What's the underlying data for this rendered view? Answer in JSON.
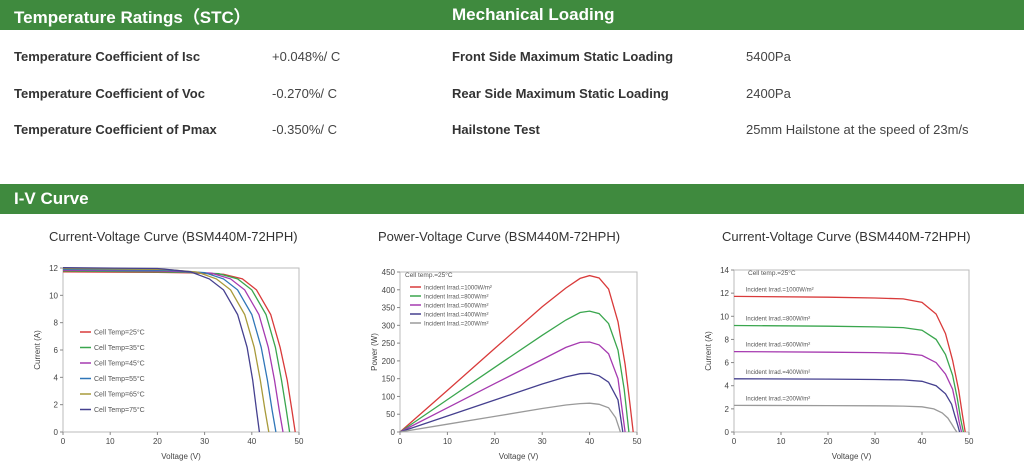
{
  "temp": {
    "title": "Temperature Ratings（STC）",
    "rows": [
      {
        "label": "Temperature Coefficient of  Isc",
        "value": "+0.048%/ C"
      },
      {
        "label": "Temperature Coefficient of  Voc",
        "value": "-0.270%/ C"
      },
      {
        "label": "Temperature Coefficient of  Pmax",
        "value": "-0.350%/ C"
      }
    ]
  },
  "mech": {
    "title": "Mechanical Loading",
    "rows": [
      {
        "label": "Front Side Maximum Static Loading",
        "value": "5400Pa"
      },
      {
        "label": "Rear Side Maximum Static Loading",
        "value": "2400Pa"
      },
      {
        "label": "Hailstone Test",
        "value": "25mm Hailstone at the speed of 23m/s"
      }
    ]
  },
  "iv": {
    "title": "I-V Curve"
  },
  "chart_data": [
    {
      "type": "line",
      "title": "Current-Voltage Curve (BSM440M-72HPH)",
      "xlabel": "Voltage (V)",
      "ylabel": "Current (A)",
      "xlim": [
        0,
        50
      ],
      "ylim": [
        0,
        12
      ],
      "xticks": [
        0,
        10,
        20,
        30,
        40,
        50
      ],
      "yticks": [
        0,
        2,
        4,
        6,
        8,
        10,
        12
      ],
      "legend_position": "left",
      "series": [
        {
          "name": "Cell Temp=25°C",
          "color": "#d93a3a",
          "x": [
            0,
            20,
            27,
            34,
            38,
            41,
            44,
            46,
            47.5,
            48.5,
            49.2
          ],
          "y": [
            11.72,
            11.68,
            11.64,
            11.54,
            11.2,
            10.4,
            8.6,
            6.2,
            3.8,
            1.6,
            0
          ]
        },
        {
          "name": "Cell Temp=35°C",
          "color": "#3aa64e",
          "x": [
            0,
            20,
            26,
            33,
            37,
            40,
            43,
            45,
            46.3,
            47.3,
            48
          ],
          "y": [
            11.78,
            11.72,
            11.68,
            11.58,
            11.2,
            10.4,
            8.6,
            6.2,
            3.8,
            1.6,
            0
          ]
        },
        {
          "name": "Cell Temp=45°C",
          "color": "#a63ab0",
          "x": [
            0,
            20,
            25,
            31.5,
            35.5,
            38.5,
            41.5,
            43.5,
            44.8,
            45.8,
            46.6
          ],
          "y": [
            11.84,
            11.78,
            11.74,
            11.62,
            11.2,
            10.4,
            8.6,
            6.2,
            3.8,
            1.6,
            0
          ]
        },
        {
          "name": "Cell Temp=55°C",
          "color": "#2f76b8",
          "x": [
            0,
            20,
            24,
            30,
            34,
            37,
            40,
            42,
            43.3,
            44.3,
            45.1
          ],
          "y": [
            11.9,
            11.84,
            11.8,
            11.66,
            11.2,
            10.4,
            8.6,
            6.2,
            3.8,
            1.6,
            0
          ]
        },
        {
          "name": "Cell Temp=65°C",
          "color": "#a89a3a",
          "x": [
            0,
            20,
            23,
            28.5,
            32.5,
            35.5,
            38.5,
            40.5,
            41.8,
            42.8,
            43.6
          ],
          "y": [
            11.96,
            11.9,
            11.86,
            11.7,
            11.2,
            10.4,
            8.6,
            6.2,
            3.8,
            1.6,
            0
          ]
        },
        {
          "name": "Cell Temp=75°C",
          "color": "#45408f",
          "x": [
            0,
            20,
            22,
            27,
            31,
            34,
            37,
            39,
            40.2,
            41,
            41.6
          ],
          "y": [
            12.02,
            11.96,
            11.9,
            11.72,
            11.2,
            10.4,
            8.6,
            6.2,
            3.8,
            1.6,
            0
          ]
        }
      ]
    },
    {
      "type": "line",
      "title": "Power-Voltage Curve (BSM440M-72HPH)",
      "xlabel": "Voltage (V)",
      "ylabel": "Power (W)",
      "xlim": [
        0,
        50
      ],
      "ylim": [
        0,
        450
      ],
      "xticks": [
        0,
        10,
        20,
        30,
        40,
        50
      ],
      "yticks": [
        0,
        50,
        100,
        150,
        200,
        250,
        300,
        350,
        400,
        450
      ],
      "annotation": "Cell temp.=25°C",
      "legend_position": "top-left",
      "series": [
        {
          "name": "Incident Irrad.=1000W/m²",
          "color": "#d93a3a",
          "x": [
            0,
            10,
            20,
            30,
            35,
            38,
            40,
            42,
            44,
            46,
            47.5,
            48.5,
            49.2
          ],
          "y": [
            0,
            117,
            235,
            352,
            405,
            432,
            440,
            433,
            402,
            310,
            190,
            80,
            0
          ]
        },
        {
          "name": "Incident Irrad.=800W/m²",
          "color": "#3aa64e",
          "x": [
            0,
            10,
            20,
            30,
            35,
            38,
            40,
            42,
            44,
            46,
            47.3,
            48.3
          ],
          "y": [
            0,
            91,
            182,
            272,
            315,
            336,
            340,
            333,
            305,
            230,
            120,
            0
          ]
        },
        {
          "name": "Incident Irrad.=600W/m²",
          "color": "#a63ab0",
          "x": [
            0,
            10,
            20,
            30,
            35,
            38,
            40,
            42,
            44,
            46,
            47.5
          ],
          "y": [
            0,
            68,
            136,
            204,
            238,
            252,
            253,
            245,
            220,
            150,
            0
          ]
        },
        {
          "name": "Incident Irrad.=400W/m²",
          "color": "#45408f",
          "x": [
            0,
            10,
            20,
            30,
            35,
            38,
            40,
            42,
            44,
            46,
            47
          ],
          "y": [
            0,
            45,
            90,
            135,
            155,
            164,
            165,
            158,
            140,
            90,
            0
          ]
        },
        {
          "name": "Incident Irrad.=200W/m²",
          "color": "#9a9a9a",
          "x": [
            0,
            10,
            20,
            30,
            35,
            38,
            40,
            42,
            44,
            45.5,
            46.5
          ],
          "y": [
            0,
            22,
            44,
            66,
            76,
            80,
            81,
            78,
            68,
            40,
            0
          ]
        }
      ]
    },
    {
      "type": "line",
      "title": "Current-Voltage Curve (BSM440M-72HPH)",
      "xlabel": "Voltage (V)",
      "ylabel": "Current (A)",
      "xlim": [
        0,
        50
      ],
      "ylim": [
        0,
        14
      ],
      "xticks": [
        0,
        10,
        20,
        30,
        40,
        50
      ],
      "yticks": [
        0,
        2,
        4,
        6,
        8,
        10,
        12,
        14
      ],
      "annotation": "Cell temp.=25°C",
      "series": [
        {
          "name": "Incident Irrad.=1000W/m²",
          "color": "#d93a3a",
          "x": [
            0,
            20,
            30,
            36,
            40,
            43,
            45,
            46.5,
            47.8,
            48.6,
            49.2
          ],
          "y": [
            11.72,
            11.65,
            11.58,
            11.5,
            11.2,
            10.2,
            8.5,
            6.2,
            3.6,
            1.5,
            0
          ]
        },
        {
          "name": "Incident Irrad.=800W/m²",
          "color": "#3aa64e",
          "x": [
            0,
            20,
            30,
            36,
            40,
            43,
            45,
            46.5,
            47.5,
            48.2,
            48.8
          ],
          "y": [
            9.2,
            9.14,
            9.08,
            9.02,
            8.8,
            8.0,
            6.7,
            4.9,
            2.9,
            1.2,
            0
          ]
        },
        {
          "name": "Incident Irrad.=600W/m²",
          "color": "#a63ab0",
          "x": [
            0,
            20,
            30,
            36,
            40,
            43,
            45,
            46.5,
            47.3,
            47.9,
            48.4
          ],
          "y": [
            6.95,
            6.9,
            6.86,
            6.8,
            6.62,
            6.0,
            5.0,
            3.7,
            2.2,
            0.9,
            0
          ]
        },
        {
          "name": "Incident Irrad.=400W/m²",
          "color": "#45408f",
          "x": [
            0,
            20,
            30,
            36,
            40,
            43,
            45,
            46.3,
            47,
            47.6,
            48
          ],
          "y": [
            4.6,
            4.57,
            4.54,
            4.5,
            4.38,
            4.0,
            3.3,
            2.4,
            1.4,
            0.6,
            0
          ]
        },
        {
          "name": "Incident Irrad.=200W/m²",
          "color": "#9a9a9a",
          "x": [
            0,
            20,
            30,
            36,
            40,
            42.5,
            44.3,
            45.5,
            46.3,
            46.9,
            47.4
          ],
          "y": [
            2.3,
            2.28,
            2.26,
            2.24,
            2.18,
            2.0,
            1.65,
            1.2,
            0.7,
            0.3,
            0
          ]
        }
      ]
    }
  ]
}
